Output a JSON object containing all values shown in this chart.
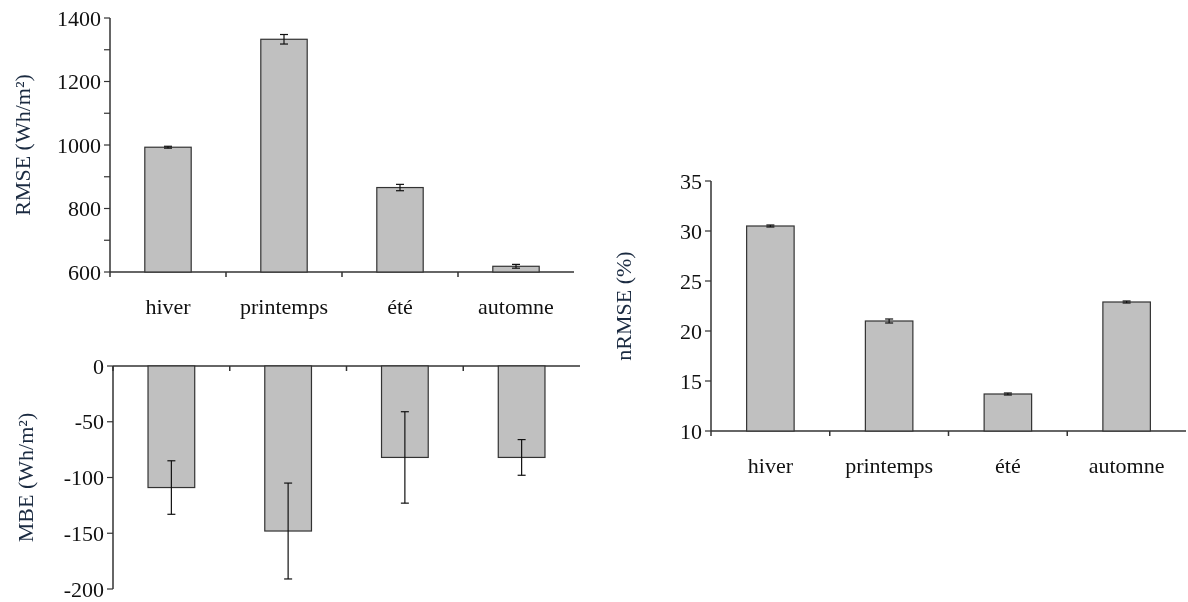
{
  "chart_data": [
    {
      "type": "bar",
      "ylabel": "RMSE (Wh/m²)",
      "categories": [
        "hiver",
        "printemps",
        "été",
        "automne"
      ],
      "values": [
        993,
        1333,
        866,
        618
      ],
      "errors": [
        3,
        15,
        10,
        6
      ],
      "color": "#c0c0c0",
      "ylim": [
        600,
        1400
      ],
      "yticks": [
        600,
        {
          "value": 700,
          "label": null
        },
        800,
        {
          "value": 900,
          "label": null
        },
        1000,
        {
          "value": 1100,
          "label": null
        },
        1200,
        {
          "value": 1300,
          "label": null
        },
        1400
      ],
      "grid": false
    },
    {
      "type": "bar",
      "ylabel": "MBE (Wh/m²)",
      "categories": [
        null,
        null,
        null,
        null
      ],
      "values": [
        -109,
        -148,
        -82,
        -82
      ],
      "errors": [
        24,
        43,
        41,
        16
      ],
      "color": "#c0c0c0",
      "ylim": [
        -200,
        0
      ],
      "yticks": [
        -200,
        -150,
        -100,
        -50,
        0
      ],
      "grid": false
    },
    {
      "type": "bar",
      "ylabel": "nRMSE (%)",
      "categories": [
        "hiver",
        "printemps",
        "été",
        "automne"
      ],
      "values": [
        30.5,
        21.0,
        13.7,
        22.9
      ],
      "errors": [
        0.1,
        0.2,
        0.1,
        0.1
      ],
      "color": "#c0c0c0",
      "ylim": [
        10,
        35
      ],
      "yticks": [
        10,
        15,
        20,
        25,
        30,
        35
      ],
      "grid": false
    }
  ]
}
